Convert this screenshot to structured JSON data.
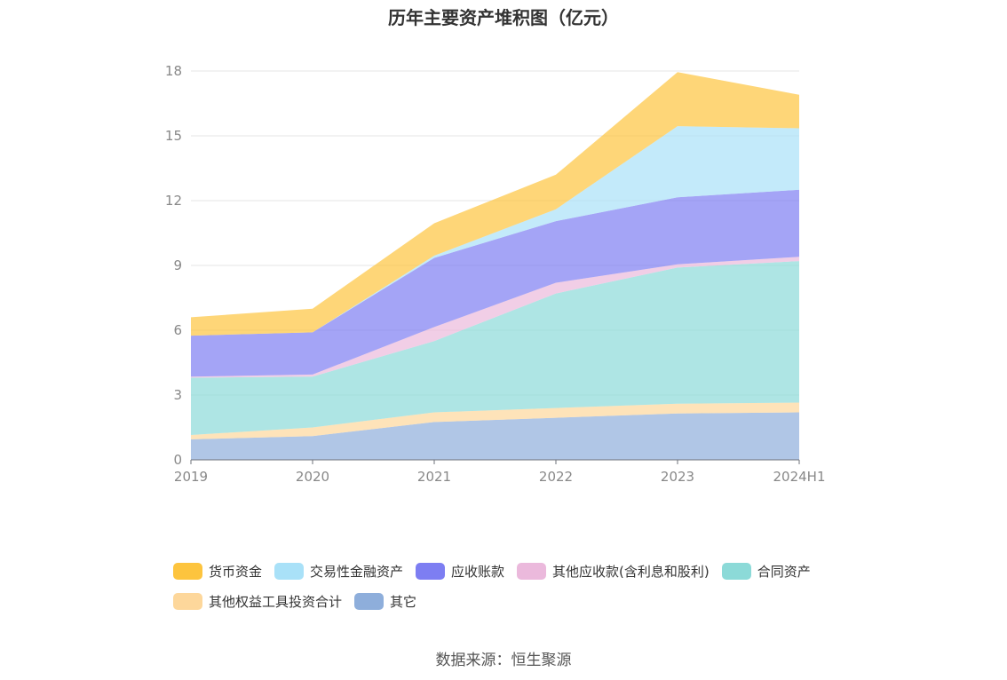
{
  "title": "历年主要资产堆积图（亿元）",
  "source": "数据来源：恒生聚源",
  "chart_data": {
    "type": "area",
    "stacked": true,
    "title": "历年主要资产堆积图（亿元）",
    "xlabel": "",
    "ylabel": "",
    "categories": [
      "2019",
      "2020",
      "2021",
      "2022",
      "2023",
      "2024H1"
    ],
    "ylim": [
      0,
      18
    ],
    "yticks": [
      0,
      3,
      6,
      9,
      12,
      15,
      18
    ],
    "grid": true,
    "legend_position": "bottom",
    "series": [
      {
        "name": "其它",
        "color": "#8eaedb",
        "values": [
          0.95,
          1.1,
          1.75,
          1.95,
          2.15,
          2.2
        ]
      },
      {
        "name": "其他权益工具投资合计",
        "color": "#fdd79b",
        "values": [
          0.2,
          0.4,
          0.45,
          0.45,
          0.45,
          0.45
        ]
      },
      {
        "name": "合同资产",
        "color": "#8cdad8",
        "values": [
          2.65,
          2.35,
          3.3,
          5.3,
          6.3,
          6.55
        ]
      },
      {
        "name": "其他应收款(含利息和股利)",
        "color": "#ebb9dc",
        "values": [
          0.05,
          0.1,
          0.65,
          0.5,
          0.15,
          0.2
        ]
      },
      {
        "name": "应收账款",
        "color": "#7d7ef2",
        "values": [
          1.9,
          1.95,
          3.2,
          2.85,
          3.1,
          3.1
        ]
      },
      {
        "name": "交易性金融资产",
        "color": "#a9e1f8",
        "values": [
          0.0,
          0.0,
          0.1,
          0.55,
          3.3,
          2.85
        ]
      },
      {
        "name": "货币资金",
        "color": "#fdc43e",
        "values": [
          0.85,
          1.1,
          1.5,
          1.6,
          2.5,
          1.55
        ]
      }
    ]
  },
  "legend": [
    {
      "label": "货币资金",
      "color": "#fdc43e"
    },
    {
      "label": "交易性金融资产",
      "color": "#a9e1f8"
    },
    {
      "label": "应收账款",
      "color": "#7d7ef2"
    },
    {
      "label": "其他应收款(含利息和股利)",
      "color": "#ebb9dc"
    },
    {
      "label": "合同资产",
      "color": "#8cdad8"
    },
    {
      "label": "其他权益工具投资合计",
      "color": "#fdd79b"
    },
    {
      "label": "其它",
      "color": "#8eaedb"
    }
  ]
}
